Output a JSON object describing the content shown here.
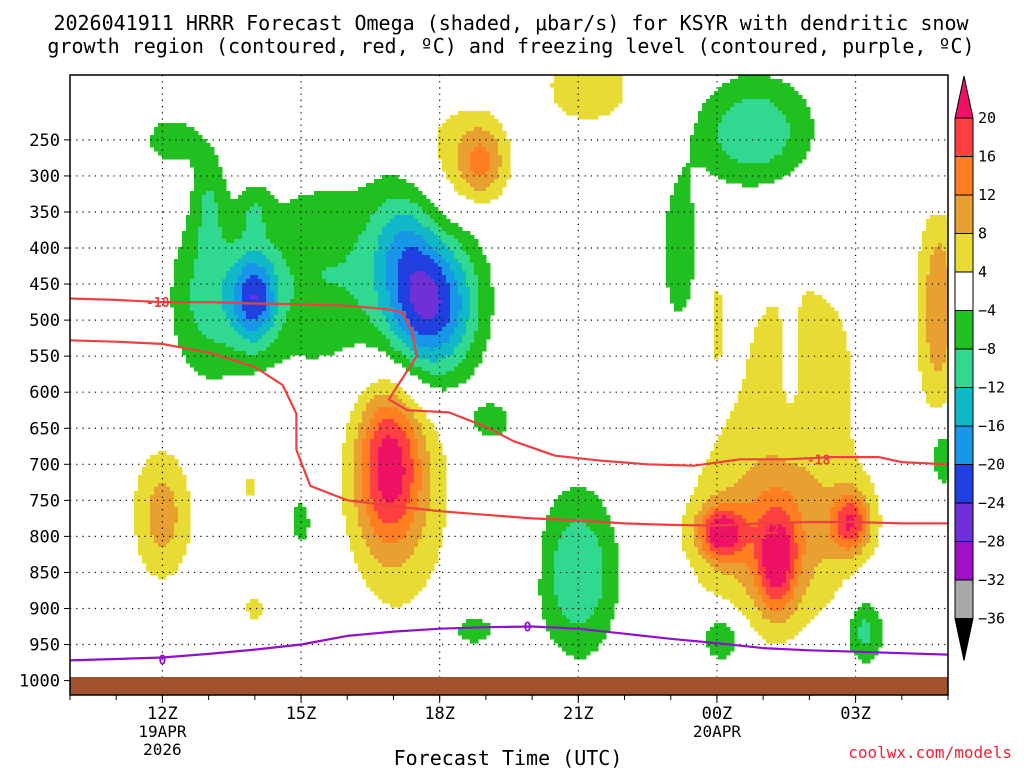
{
  "figure": {
    "title_line1": "2026041911 HRRR Forecast Omega (shaded, μbar/s) for KSYR with dendritic snow",
    "title_line2": "growth region (contoured, red, ºC) and freezing level (contoured, purple, ºC)",
    "watermark": "coolwx.com/models"
  },
  "chart_data": {
    "type": "heatmap",
    "title": "2026041911 HRRR Forecast Omega (shaded, μbar/s) for KSYR with dendritic snow growth region (contoured, red, ºC) and freezing level (contoured, purple, ºC)",
    "xlabel": "Forecast Time (UTC)",
    "ylabel": "",
    "x_unit": "hours since 2026-04-19 11Z",
    "xlim": [
      10,
      29
    ],
    "ylim": [
      1020,
      160
    ],
    "y_ticks": [
      250,
      300,
      350,
      400,
      450,
      500,
      550,
      600,
      650,
      700,
      750,
      800,
      850,
      900,
      950,
      1000
    ],
    "x_ticks": [
      {
        "x": 12,
        "label": "12Z",
        "sub1": "19APR",
        "sub2": "2026"
      },
      {
        "x": 15,
        "label": "15Z",
        "sub1": "",
        "sub2": ""
      },
      {
        "x": 18,
        "label": "18Z",
        "sub1": "",
        "sub2": ""
      },
      {
        "x": 21,
        "label": "21Z",
        "sub1": "",
        "sub2": ""
      },
      {
        "x": 24,
        "label": "00Z",
        "sub1": "20APR",
        "sub2": ""
      },
      {
        "x": 27,
        "label": "03Z",
        "sub1": "",
        "sub2": ""
      }
    ],
    "grid": true,
    "surface_pressure": 995,
    "colorbar": {
      "levels": [
        20,
        16,
        12,
        8,
        4,
        -4,
        -8,
        -12,
        -16,
        -20,
        -24,
        -28,
        -32,
        -36
      ],
      "colors": [
        "#ee1166",
        "#ff4040",
        "#ff7f20",
        "#e8a030",
        "#e8dc34",
        "#ffffff",
        "#20c020",
        "#30d890",
        "#10b8c8",
        "#1896e8",
        "#2040e0",
        "#7030d8",
        "#a010c8",
        "#a8a8a8",
        "#000000"
      ]
    },
    "omega_features": [
      {
        "x": 12.2,
        "p": 250,
        "sx": 0.5,
        "sp": 28,
        "v": -6
      },
      {
        "x": 13.0,
        "p": 470,
        "sx": 0.6,
        "sp": 80,
        "v": -9
      },
      {
        "x": 14.0,
        "p": 470,
        "sx": 0.35,
        "sp": 45,
        "v": -18
      },
      {
        "x": 15.5,
        "p": 440,
        "sx": 1.3,
        "sp": 100,
        "v": -8
      },
      {
        "x": 17.8,
        "p": 475,
        "sx": 0.7,
        "sp": 75,
        "v": -26
      },
      {
        "x": 17.2,
        "p": 380,
        "sx": 0.5,
        "sp": 55,
        "v": -7
      },
      {
        "x": 13.0,
        "p": 330,
        "sx": 0.25,
        "sp": 50,
        "v": -6
      },
      {
        "x": 14.0,
        "p": 350,
        "sx": 0.22,
        "sp": 25,
        "v": -5
      },
      {
        "x": 18.0,
        "p": 310,
        "sx": 0.5,
        "sp": 120,
        "v": 4.5
      },
      {
        "x": 18.9,
        "p": 280,
        "sx": 0.4,
        "sp": 40,
        "v": 13
      },
      {
        "x": 19.8,
        "p": 210,
        "sx": 0.25,
        "sp": 20,
        "v": -6
      },
      {
        "x": 16.9,
        "p": 700,
        "sx": 0.5,
        "sp": 80,
        "v": 18
      },
      {
        "x": 17.2,
        "p": 740,
        "sx": 0.9,
        "sp": 140,
        "v": 6
      },
      {
        "x": 12.0,
        "p": 770,
        "sx": 0.45,
        "sp": 65,
        "v": 10
      },
      {
        "x": 13.9,
        "p": 730,
        "sx": 0.15,
        "sp": 20,
        "v": 5
      },
      {
        "x": 14.0,
        "p": 900,
        "sx": 0.25,
        "sp": 20,
        "v": 5
      },
      {
        "x": 15.0,
        "p": 780,
        "sx": 0.2,
        "sp": 30,
        "v": -6
      },
      {
        "x": 19.1,
        "p": 640,
        "sx": 0.35,
        "sp": 20,
        "v": -7
      },
      {
        "x": 19.8,
        "p": 820,
        "sx": 0.2,
        "sp": 40,
        "v": 5
      },
      {
        "x": 18.7,
        "p": 930,
        "sx": 0.5,
        "sp": 20,
        "v": -6
      },
      {
        "x": 21.0,
        "p": 850,
        "sx": 0.6,
        "sp": 80,
        "v": -12
      },
      {
        "x": 21.2,
        "p": 180,
        "sx": 1.2,
        "sp": 60,
        "v": 5
      },
      {
        "x": 23.2,
        "p": 410,
        "sx": 0.3,
        "sp": 80,
        "v": -8
      },
      {
        "x": 24.8,
        "p": 240,
        "sx": 0.9,
        "sp": 55,
        "v": -12
      },
      {
        "x": 25.8,
        "p": 550,
        "sx": 1.5,
        "sp": 140,
        "v": 5
      },
      {
        "x": 25.2,
        "p": 800,
        "sx": 1.2,
        "sp": 90,
        "v": 11
      },
      {
        "x": 24.1,
        "p": 795,
        "sx": 0.35,
        "sp": 25,
        "v": 18
      },
      {
        "x": 25.3,
        "p": 835,
        "sx": 0.3,
        "sp": 50,
        "v": 15
      },
      {
        "x": 26.9,
        "p": 780,
        "sx": 0.3,
        "sp": 30,
        "v": 16
      },
      {
        "x": 24.1,
        "p": 940,
        "sx": 0.3,
        "sp": 25,
        "v": -10
      },
      {
        "x": 27.2,
        "p": 930,
        "sx": 0.3,
        "sp": 35,
        "v": -10
      },
      {
        "x": 28.8,
        "p": 480,
        "sx": 0.3,
        "sp": 100,
        "v": 11
      },
      {
        "x": 28.9,
        "p": 310,
        "sx": 0.2,
        "sp": 25,
        "v": -6
      },
      {
        "x": 28.9,
        "p": 690,
        "sx": 0.2,
        "sp": 30,
        "v": -9
      },
      {
        "x": 25.6,
        "p": 580,
        "sx": 0.2,
        "sp": 70,
        "v": -2
      },
      {
        "x": 24.0,
        "p": 500,
        "sx": 0.08,
        "sp": 40,
        "v": 4
      }
    ],
    "series": [
      {
        "name": "-18 ºC",
        "label": "-18",
        "color": "#ee4040",
        "points": [
          [
            10,
            470
          ],
          [
            11,
            472
          ],
          [
            12,
            475
          ],
          [
            13,
            475
          ],
          [
            14,
            477
          ],
          [
            15,
            478
          ],
          [
            16,
            480
          ],
          [
            16.9,
            485
          ],
          [
            17.2,
            490
          ],
          [
            17.4,
            515
          ],
          [
            17.5,
            550
          ],
          [
            17.2,
            580
          ],
          [
            16.9,
            610
          ],
          [
            17.3,
            625
          ],
          [
            18.2,
            628
          ],
          [
            19.0,
            648
          ],
          [
            19.6,
            668
          ],
          [
            20.5,
            688
          ],
          [
            21.5,
            695
          ],
          [
            22.5,
            700
          ],
          [
            23.5,
            702
          ],
          [
            24.5,
            693
          ],
          [
            25.5,
            693
          ],
          [
            26.5,
            690
          ],
          [
            27.5,
            690
          ],
          [
            28.0,
            697
          ],
          [
            29,
            700
          ]
        ],
        "labels": [
          [
            11.9,
            475
          ],
          [
            26.2,
            693
          ]
        ]
      },
      {
        "name": "-12 ºC",
        "label": "-12",
        "color": "#ee4040",
        "points": [
          [
            10,
            528
          ],
          [
            11,
            530
          ],
          [
            12,
            533
          ],
          [
            13,
            545
          ],
          [
            14,
            565
          ],
          [
            14.6,
            590
          ],
          [
            14.9,
            630
          ],
          [
            14.9,
            680
          ],
          [
            15.2,
            730
          ],
          [
            16,
            750
          ],
          [
            17,
            758
          ],
          [
            18,
            765
          ],
          [
            19,
            770
          ],
          [
            20,
            775
          ],
          [
            21,
            778
          ],
          [
            22,
            782
          ],
          [
            23,
            784
          ],
          [
            24,
            785
          ],
          [
            25,
            782
          ],
          [
            26,
            780
          ],
          [
            27,
            780
          ],
          [
            28,
            782
          ],
          [
            29,
            782
          ]
        ],
        "labels": [
          [
            25.1,
            790
          ]
        ]
      },
      {
        "name": "0 ºC",
        "label": "0",
        "color": "#9010d0",
        "points": [
          [
            10,
            972
          ],
          [
            11,
            970
          ],
          [
            12,
            968
          ],
          [
            13,
            963
          ],
          [
            14,
            957
          ],
          [
            15,
            950
          ],
          [
            16,
            938
          ],
          [
            17,
            932
          ],
          [
            18,
            928
          ],
          [
            19,
            926
          ],
          [
            20,
            925
          ],
          [
            21,
            928
          ],
          [
            22,
            935
          ],
          [
            23,
            942
          ],
          [
            24,
            948
          ],
          [
            25,
            955
          ],
          [
            26,
            958
          ],
          [
            27,
            960
          ],
          [
            28,
            962
          ],
          [
            29,
            964
          ]
        ],
        "labels": [
          [
            12,
            971
          ],
          [
            19.9,
            925
          ]
        ]
      }
    ]
  }
}
